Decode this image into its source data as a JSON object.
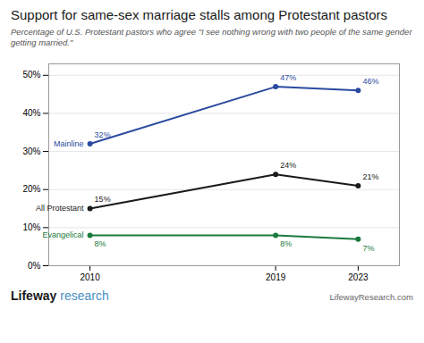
{
  "chart_data": {
    "type": "line",
    "title": "Support for same-sex marriage stalls among Protestant pastors",
    "subtitle": "Percentage of U.S. Protestant pastors who agree \"I see nothing wrong with two people of the same gender getting married.\"",
    "x": [
      2010,
      2019,
      2023
    ],
    "xlim": [
      2008,
      2025
    ],
    "xticks": [
      2010,
      2019,
      2023
    ],
    "ylim": [
      0,
      53
    ],
    "yticks": [
      {
        "value": 0,
        "label": "0%"
      },
      {
        "value": 10,
        "label": "10%"
      },
      {
        "value": 20,
        "label": "20%"
      },
      {
        "value": 30,
        "label": "30%"
      },
      {
        "value": 40,
        "label": "40%"
      },
      {
        "value": 50,
        "label": "50%"
      }
    ],
    "grid": true,
    "marker": "circle",
    "data_labels": true,
    "series": [
      {
        "name": "Mainline",
        "color": "#2b4aa0",
        "values": [
          32,
          47,
          46
        ],
        "value_labels": [
          "32%",
          "47%",
          "46%"
        ]
      },
      {
        "name": "All Protestant",
        "color": "#1a1a1a",
        "values": [
          15,
          24,
          21
        ],
        "value_labels": [
          "15%",
          "24%",
          "21%"
        ]
      },
      {
        "name": "Evangelical",
        "color": "#1a7a3c",
        "values": [
          8,
          8,
          7
        ],
        "value_labels": [
          "8%",
          "8%",
          "7%"
        ]
      }
    ],
    "footer": {
      "left": [
        "Lifeway",
        "research"
      ],
      "right": "LifewayResearch.com"
    }
  }
}
